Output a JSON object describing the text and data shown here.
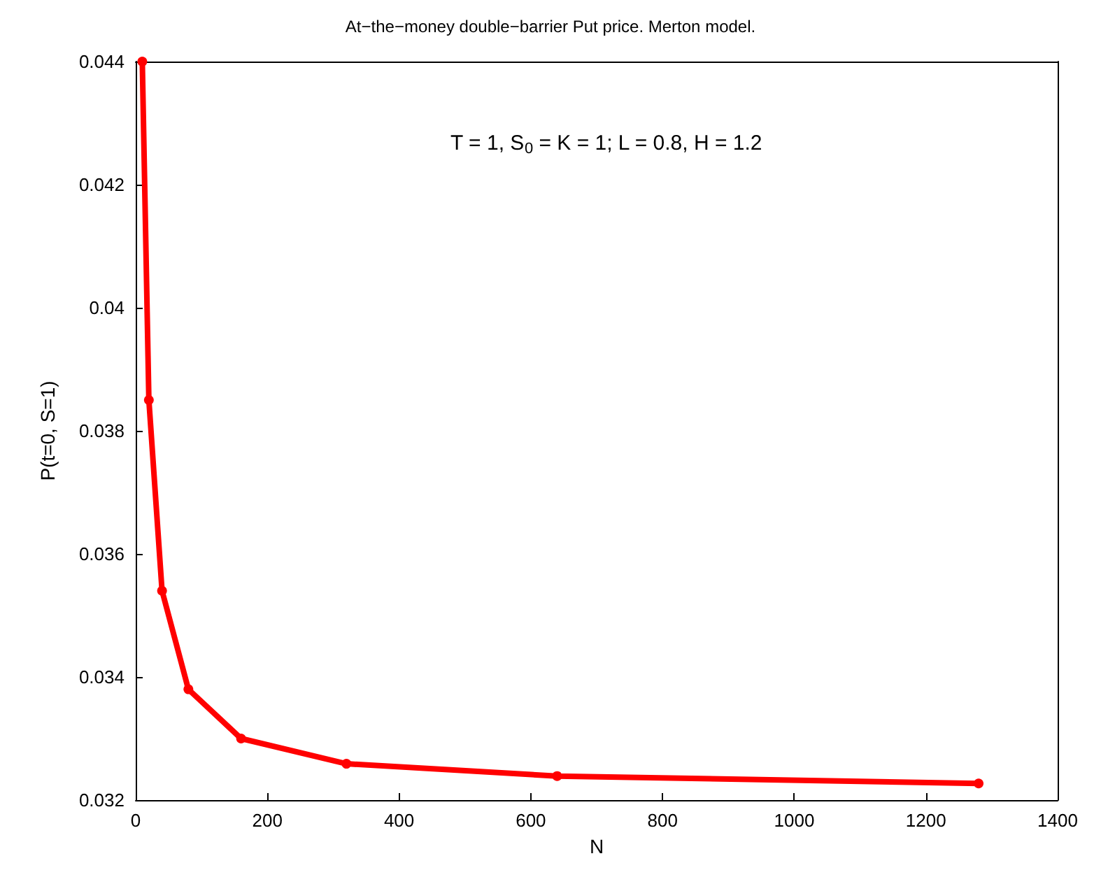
{
  "chart_data": {
    "type": "line",
    "title": "At−the−money double−barrier Put price. Merton model.",
    "xlabel": "N",
    "ylabel": "P(t=0, S=1)",
    "annotations": [
      "T = 1, S$_{0}$ = K = 1; L = 0.8, H = 1.2"
    ],
    "x": [
      10,
      20,
      40,
      80,
      160,
      320,
      640,
      1280
    ],
    "series": [
      {
        "color": "#ff0000",
        "values": [
          0.044,
          0.0385,
          0.0354,
          0.0338,
          0.033,
          0.03259,
          0.03239,
          0.03227
        ]
      }
    ],
    "xlim": [
      0,
      1400
    ],
    "xticks": [
      0,
      200,
      400,
      600,
      800,
      1000,
      1200,
      1400
    ],
    "ylim": [
      0.032,
      0.044
    ],
    "yticks": [
      0.032,
      0.034,
      0.036,
      0.038,
      0.04,
      0.042,
      0.044
    ],
    "grid": false,
    "marker": "circle",
    "line_style": "solid"
  }
}
